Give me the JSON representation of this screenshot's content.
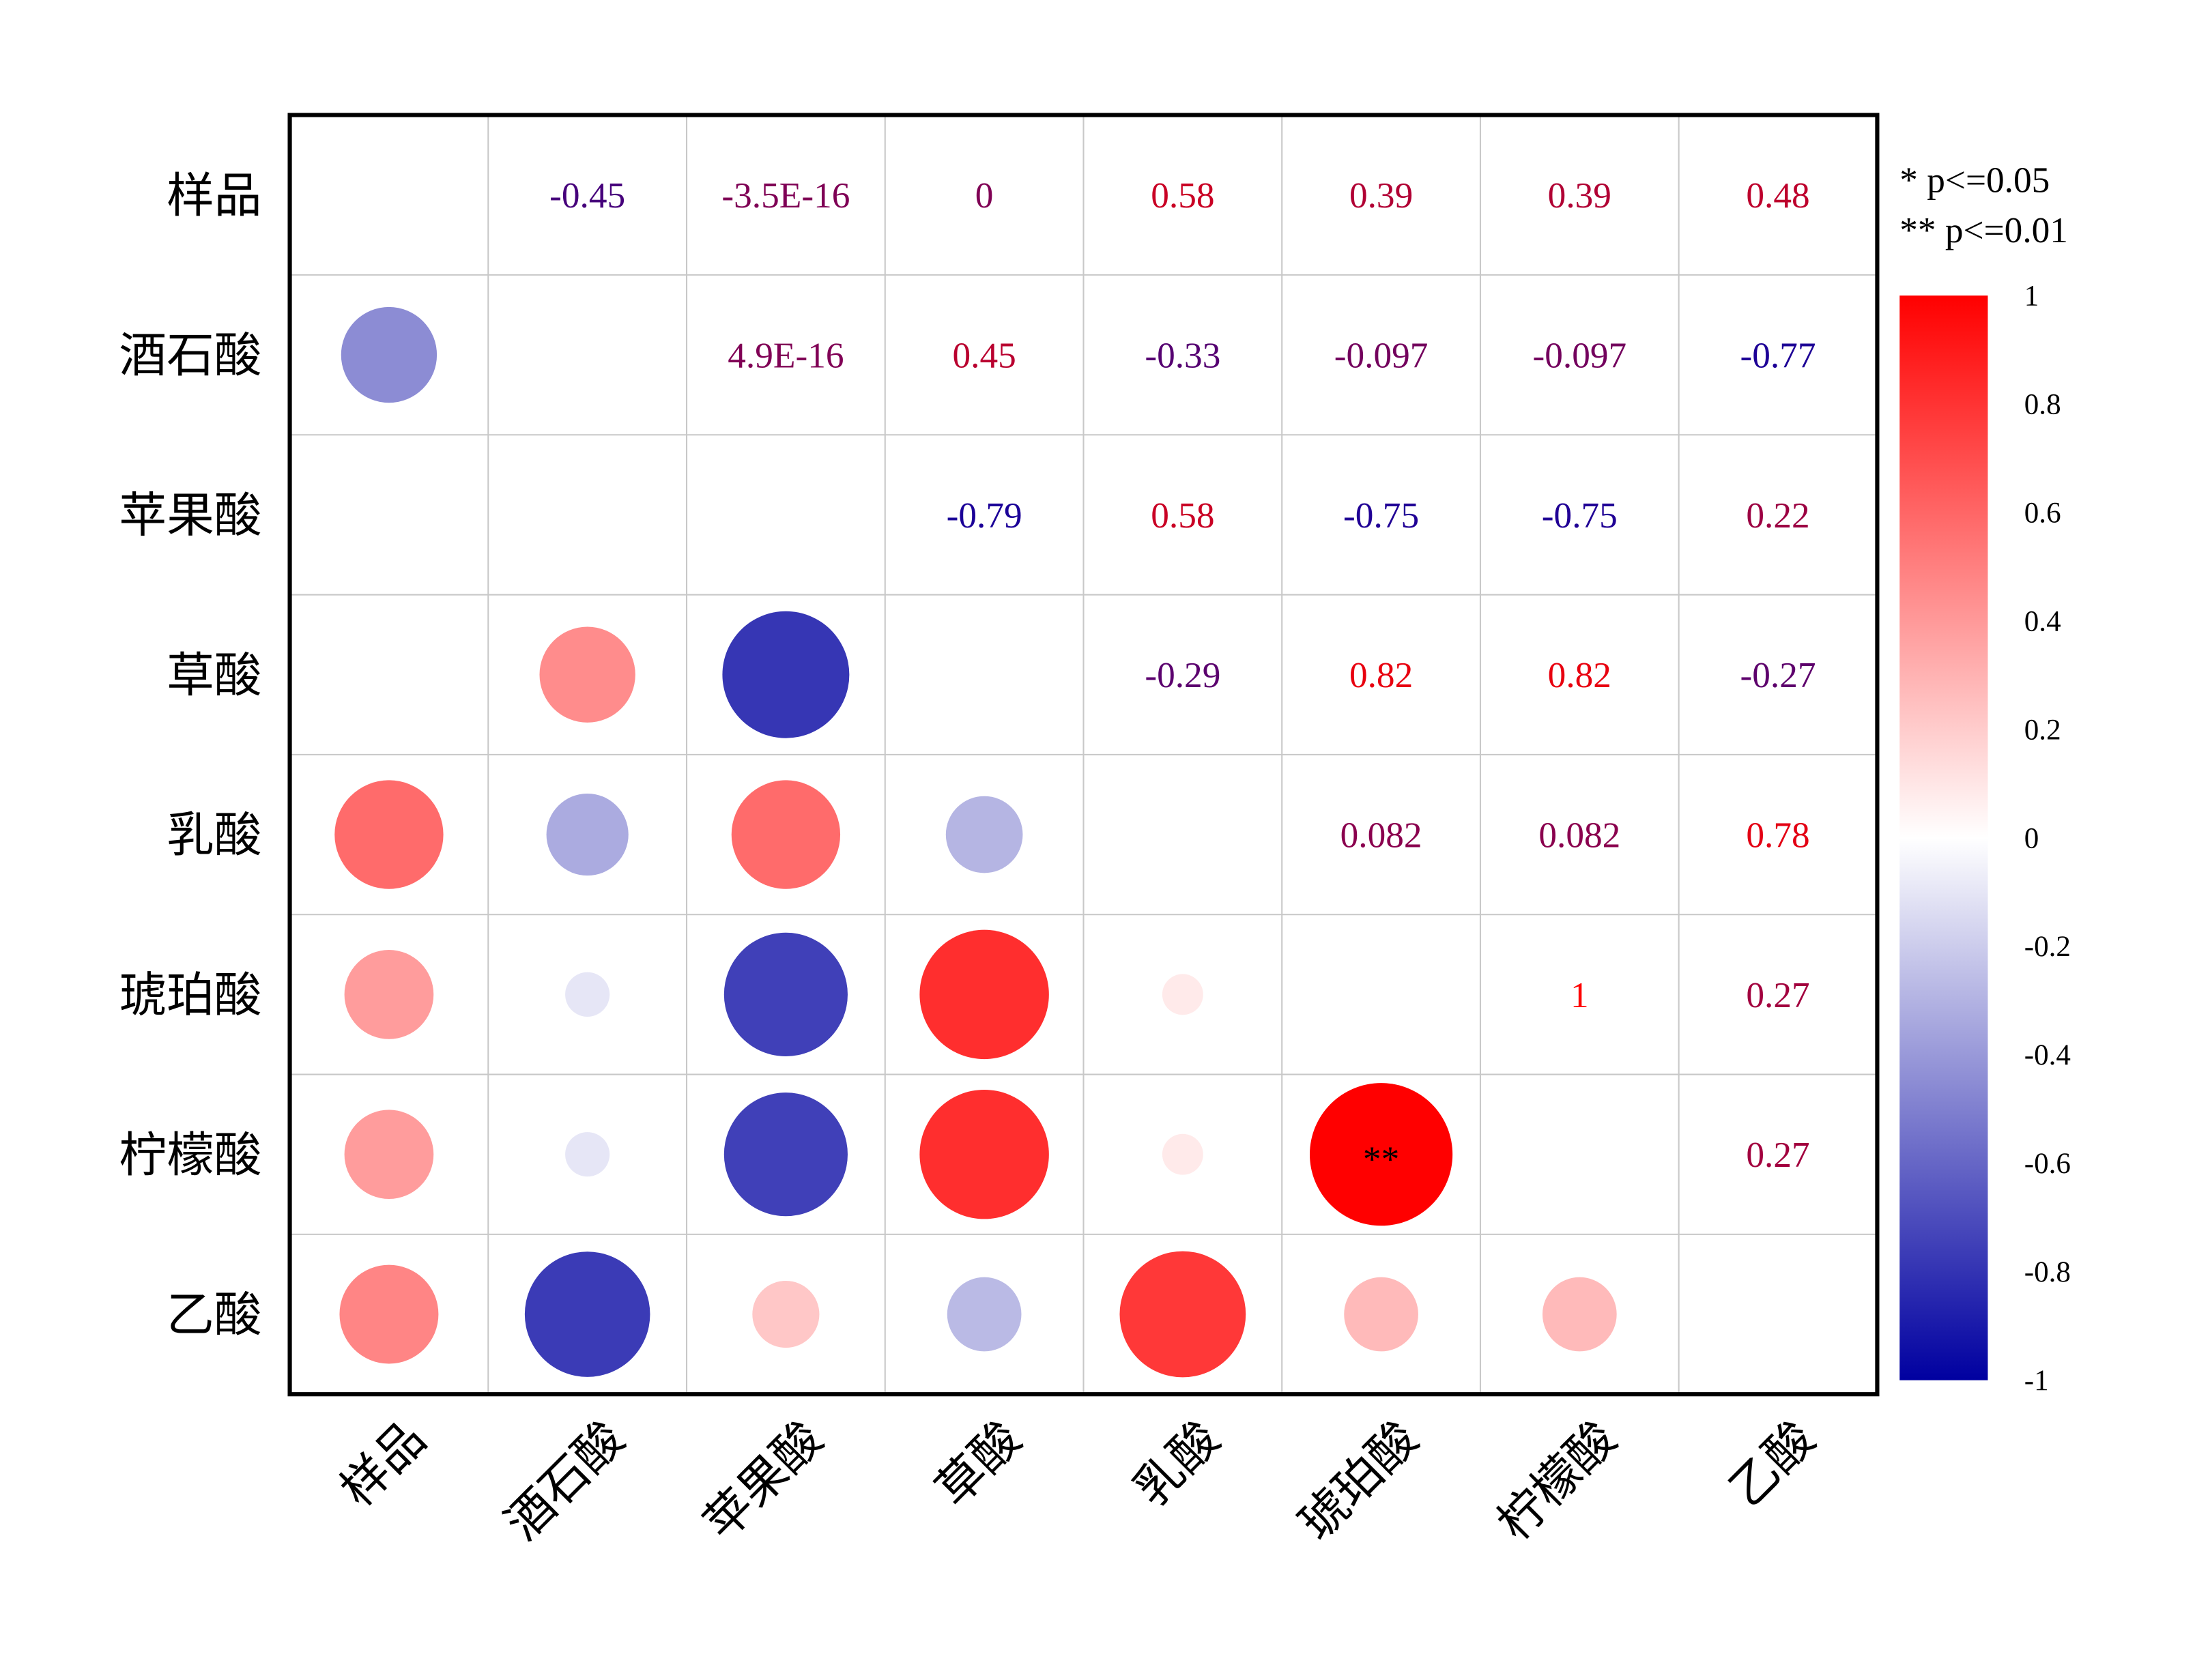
{
  "chart_data": {
    "type": "heatmap",
    "subtype": "correlation-matrix",
    "labels": [
      "样品",
      "酒石酸",
      "苹果酸",
      "草酸",
      "乳酸",
      "琥珀酸",
      "柠檬酸",
      "乙酸"
    ],
    "values": [
      [
        null,
        "-0.45",
        "-3.5E-16",
        "0",
        "0.58",
        "0.39",
        "0.39",
        "0.48"
      ],
      [
        "-0.45",
        null,
        "4.9E-16",
        "0.45",
        "-0.33",
        "-0.097",
        "-0.097",
        "-0.77"
      ],
      [
        "-3.5E-16",
        "4.9E-16",
        null,
        "-0.79",
        "0.58",
        "-0.75",
        "-0.75",
        "0.22"
      ],
      [
        "0",
        "0.45",
        "-0.79",
        null,
        "-0.29",
        "0.82",
        "0.82",
        "-0.27"
      ],
      [
        "0.58",
        "-0.33",
        "0.58",
        "-0.29",
        null,
        "0.082",
        "0.082",
        "0.78"
      ],
      [
        "0.39",
        "-0.097",
        "-0.75",
        "0.82",
        "0.082",
        null,
        "1",
        "0.27"
      ],
      [
        "0.39",
        "-0.097",
        "-0.75",
        "0.82",
        "0.082",
        "1",
        null,
        "0.27"
      ],
      [
        "0.48",
        "-0.77",
        "0.22",
        "-0.27",
        "0.78",
        "0.27",
        "0.27",
        null
      ]
    ],
    "upper_triangle": "numbers",
    "lower_triangle": "circles (area ∝ |r|, color by r)",
    "significance": [
      {
        "row": "柠檬酸",
        "col": "琥珀酸",
        "mark": "**"
      }
    ],
    "significance_legend": [
      "* p<=0.05",
      "** p<=0.01"
    ],
    "colorbar": {
      "range": [
        -1,
        1
      ],
      "ticks": [
        "1",
        "0.8",
        "0.6",
        "0.4",
        "0.2",
        "0",
        "-0.2",
        "-0.4",
        "-0.6",
        "-0.8",
        "-1"
      ],
      "colors": {
        "negative": "#0000a0",
        "zero": "#ffffff",
        "positive": "#ff0000"
      }
    },
    "grid": true
  }
}
